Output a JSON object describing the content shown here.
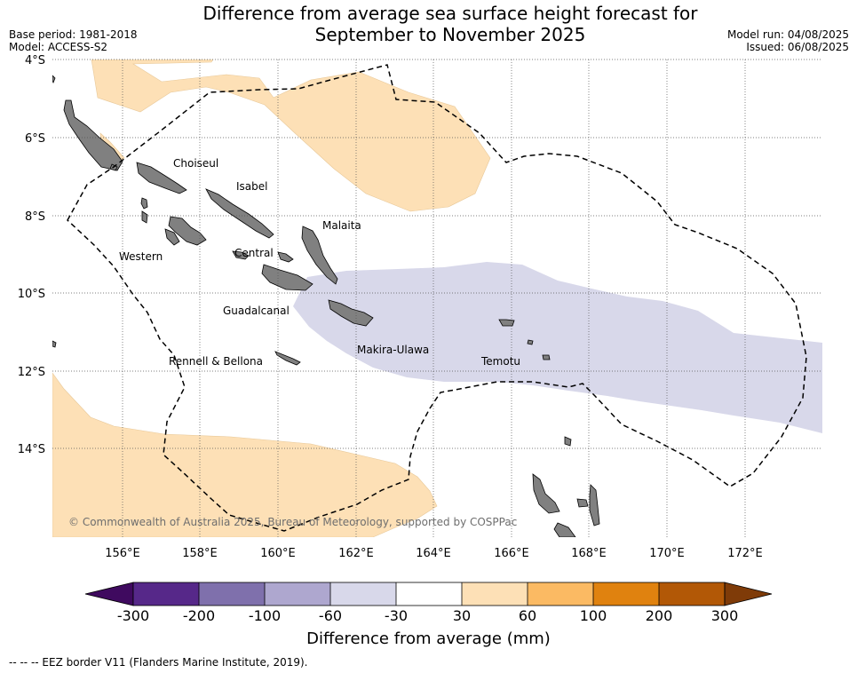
{
  "title": {
    "line1": "Difference from average sea surface height forecast for",
    "line2": "September to November 2025"
  },
  "meta": {
    "base_period": "Base period: 1981-2018",
    "model": "Model: ACCESS-S2",
    "model_run": "Model run: 04/08/2025",
    "issued": "Issued: 06/08/2025"
  },
  "map": {
    "lat_labels": [
      "4°S",
      "6°S",
      "8°S",
      "10°S",
      "12°S",
      "14°S"
    ],
    "lon_labels": [
      "156°E",
      "158°E",
      "160°E",
      "162°E",
      "164°E",
      "166°E",
      "168°E",
      "170°E",
      "172°E"
    ],
    "region_labels": {
      "choiseul": "Choiseul",
      "isabel": "Isabel",
      "malaita": "Malaita",
      "western": "Western",
      "central": "Central",
      "guadalcanal": "Guadalcanal",
      "makira_ulawa": "Makira-Ulawa",
      "temotu": "Temotu",
      "rennell_bellona": "Rennell & Bellona"
    },
    "copyright": "© Commonwealth of Australia 2025, Bureau of Meteorology, supported by COSPPac",
    "colors": {
      "positive_anomaly": "#fde0b6",
      "negative_anomaly": "#d8d8ea",
      "land": "#808080",
      "eez_border": "#000000"
    }
  },
  "colorbar": {
    "tick_labels": [
      "-300",
      "-200",
      "-100",
      "-60",
      "-30",
      "30",
      "60",
      "100",
      "200",
      "300"
    ],
    "colors": [
      "#3f0a5f",
      "#562889",
      "#7f70ac",
      "#aea7cf",
      "#d8d8ea",
      "#ffffff",
      "#fde0b6",
      "#fbba63",
      "#e0820f",
      "#b25806",
      "#7f3b08"
    ],
    "title": "Difference from average (mm)"
  },
  "footnote": "--  --  -- EEZ border V11 (Flanders Marine Institute, 2019)."
}
